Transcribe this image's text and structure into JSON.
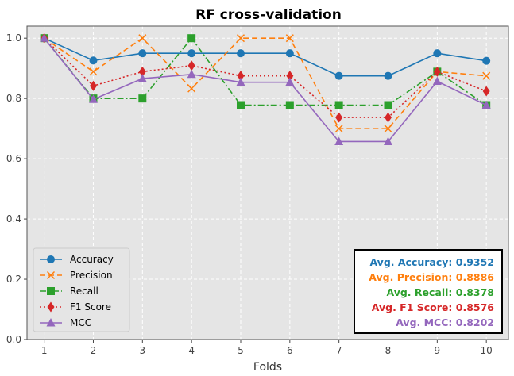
{
  "chart_data": {
    "type": "line",
    "title": "RF cross-validation",
    "xlabel": "Folds",
    "ylabel": "",
    "x": [
      1,
      2,
      3,
      4,
      5,
      6,
      7,
      8,
      9,
      10
    ],
    "xlim": [
      0.65,
      10.45
    ],
    "ylim": [
      0.0,
      1.04
    ],
    "yticks": [
      0.0,
      0.2,
      0.4,
      0.6,
      0.8,
      1.0
    ],
    "ytick_labels": [
      "0.0",
      "0.2",
      "0.4",
      "0.6",
      "0.8",
      "1.0"
    ],
    "xtick_labels": [
      "1",
      "2",
      "3",
      "4",
      "5",
      "6",
      "7",
      "8",
      "9",
      "10"
    ],
    "grid": true,
    "legend_position": "lower-left",
    "series": [
      {
        "name": "Accuracy",
        "color": "#1f77b4",
        "dash": "solid",
        "marker": "circle",
        "values": [
          1.0,
          0.926,
          0.95,
          0.95,
          0.95,
          0.95,
          0.875,
          0.875,
          0.95,
          0.925
        ]
      },
      {
        "name": "Precision",
        "color": "#ff7f0e",
        "dash": "dashed",
        "marker": "x",
        "values": [
          1.0,
          0.889,
          1.0,
          0.833,
          1.0,
          1.0,
          0.7,
          0.7,
          0.889,
          0.875
        ]
      },
      {
        "name": "Recall",
        "color": "#2ca02c",
        "dash": "dashdot",
        "marker": "square",
        "values": [
          1.0,
          0.8,
          0.8,
          1.0,
          0.778,
          0.778,
          0.778,
          0.778,
          0.889,
          0.778
        ]
      },
      {
        "name": "F1 Score",
        "color": "#d62728",
        "dash": "dotted",
        "marker": "diamond",
        "values": [
          1.0,
          0.842,
          0.889,
          0.909,
          0.875,
          0.875,
          0.737,
          0.737,
          0.889,
          0.824
        ]
      },
      {
        "name": "MCC",
        "color": "#9467bd",
        "dash": "solid",
        "marker": "triangle",
        "values": [
          1.0,
          0.797,
          0.866,
          0.88,
          0.854,
          0.854,
          0.657,
          0.657,
          0.857,
          0.778
        ]
      }
    ],
    "summary": [
      {
        "text": "Avg. Accuracy: 0.9352",
        "color": "#1f77b4"
      },
      {
        "text": "Avg. Precision: 0.8886",
        "color": "#ff7f0e"
      },
      {
        "text": "Avg. Recall: 0.8378",
        "color": "#2ca02c"
      },
      {
        "text": "Avg. F1 Score: 0.8576",
        "color": "#d62728"
      },
      {
        "text": "Avg. MCC: 0.8202",
        "color": "#9467bd"
      }
    ]
  }
}
